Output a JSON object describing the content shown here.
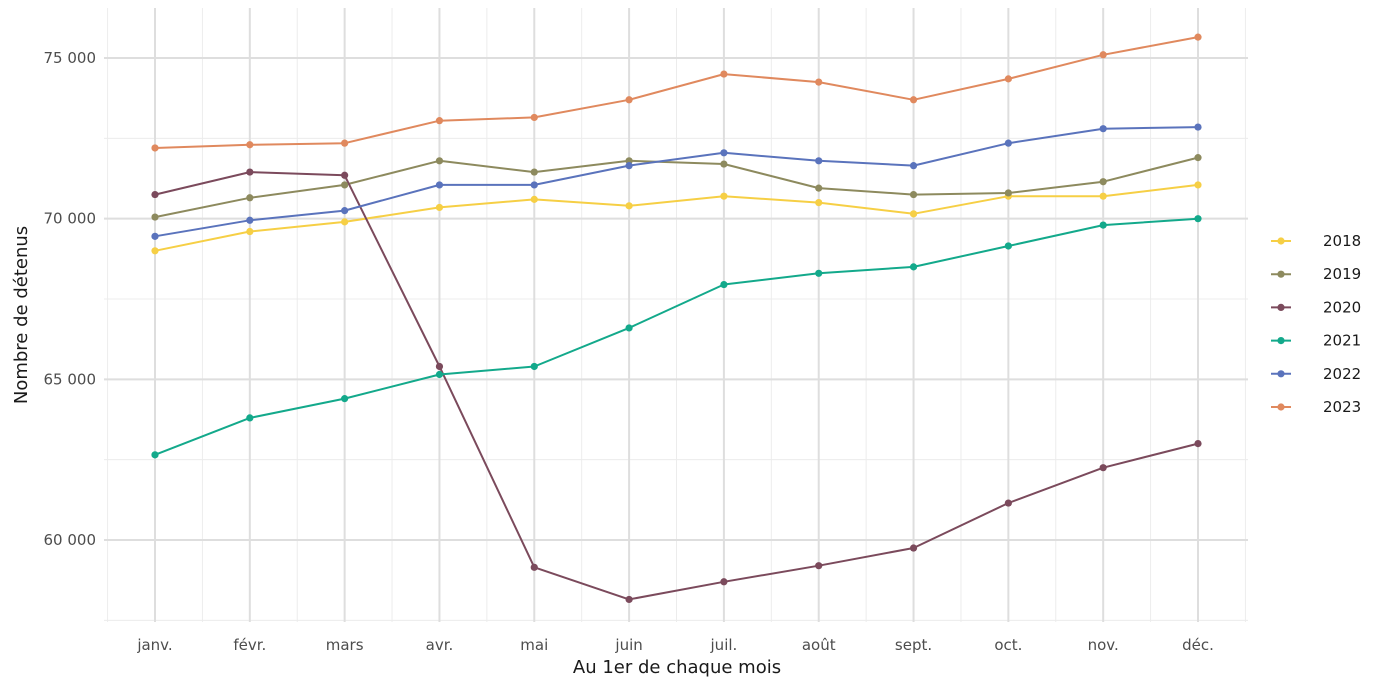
{
  "chart_data": {
    "type": "line",
    "xlabel": "Au 1er de chaque mois",
    "ylabel": "Nombre de détenus",
    "categories": [
      "janv.",
      "févr.",
      "mars",
      "avr.",
      "mai",
      "juin",
      "juil.",
      "août",
      "sept.",
      "oct.",
      "nov.",
      "déc."
    ],
    "ylim": [
      57500,
      76500
    ],
    "y_ticks": [
      60000,
      65000,
      70000,
      75000
    ],
    "y_tick_labels": [
      "60 000",
      "65 000",
      "70 000",
      "75 000"
    ],
    "grid": true,
    "legend_position": "right",
    "series": [
      {
        "name": "2018",
        "color": "#f6cf45",
        "values": [
          69000,
          69600,
          69900,
          70350,
          70600,
          70400,
          70700,
          70500,
          70150,
          70700,
          70700,
          71050
        ]
      },
      {
        "name": "2019",
        "color": "#8d8a5e",
        "values": [
          70050,
          70650,
          71050,
          71800,
          71450,
          71800,
          71700,
          70950,
          70750,
          70800,
          71150,
          71900
        ]
      },
      {
        "name": "2020",
        "color": "#7b4a5c",
        "values": [
          70750,
          71450,
          71350,
          65400,
          59150,
          58150,
          58700,
          59200,
          59750,
          61150,
          62250,
          63000
        ]
      },
      {
        "name": "2021",
        "color": "#13a98b",
        "values": [
          62650,
          63800,
          64400,
          65150,
          65400,
          66600,
          67950,
          68300,
          68500,
          69150,
          69800,
          70000
        ]
      },
      {
        "name": "2022",
        "color": "#5a73bc",
        "values": [
          69450,
          69950,
          70250,
          71050,
          71050,
          71650,
          72050,
          71800,
          71650,
          72350,
          72800,
          72850
        ]
      },
      {
        "name": "2023",
        "color": "#e0895e",
        "values": [
          72200,
          72300,
          72350,
          73050,
          73150,
          73700,
          74500,
          74250,
          73700,
          74350,
          75100,
          75650
        ]
      }
    ]
  }
}
